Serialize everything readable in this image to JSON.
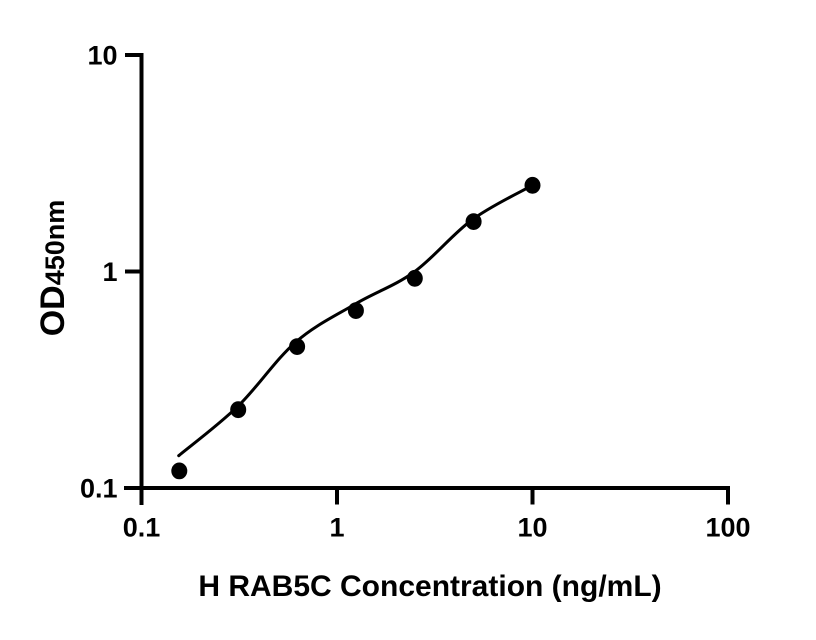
{
  "page": {
    "background": "#ffffff"
  },
  "chart_data": {
    "type": "scatter",
    "title": "",
    "xlabel": "H RAB5C Concentration (ng/mL)",
    "ylabel_main": "OD",
    "ylabel_sub": "450nm",
    "xscale": "log",
    "yscale": "log",
    "xlim": [
      0.1,
      100
    ],
    "ylim": [
      0.1,
      10
    ],
    "grid": false,
    "legend": null,
    "marker_color": "#000000",
    "line_color": "#000000",
    "axis_color": "#000000",
    "x_ticks": [
      {
        "v": 0.1,
        "label": "0.1"
      },
      {
        "v": 1,
        "label": "1"
      },
      {
        "v": 10,
        "label": "10"
      },
      {
        "v": 100,
        "label": "100"
      }
    ],
    "y_ticks": [
      {
        "v": 0.1,
        "label": "0.1"
      },
      {
        "v": 1,
        "label": "1"
      },
      {
        "v": 10,
        "label": "10"
      }
    ],
    "points": [
      {
        "x": 0.156,
        "y": 0.12
      },
      {
        "x": 0.3125,
        "y": 0.23
      },
      {
        "x": 0.625,
        "y": 0.45
      },
      {
        "x": 1.25,
        "y": 0.66
      },
      {
        "x": 2.5,
        "y": 0.93
      },
      {
        "x": 5,
        "y": 1.7
      },
      {
        "x": 10,
        "y": 2.5
      }
    ],
    "fit_curve": [
      {
        "x": 0.155,
        "y": 0.141
      },
      {
        "x": 0.312,
        "y": 0.239
      },
      {
        "x": 0.615,
        "y": 0.472
      },
      {
        "x": 1.24,
        "y": 0.708
      },
      {
        "x": 2.48,
        "y": 0.995
      },
      {
        "x": 4.89,
        "y": 1.73
      },
      {
        "x": 9.83,
        "y": 2.48
      }
    ]
  }
}
